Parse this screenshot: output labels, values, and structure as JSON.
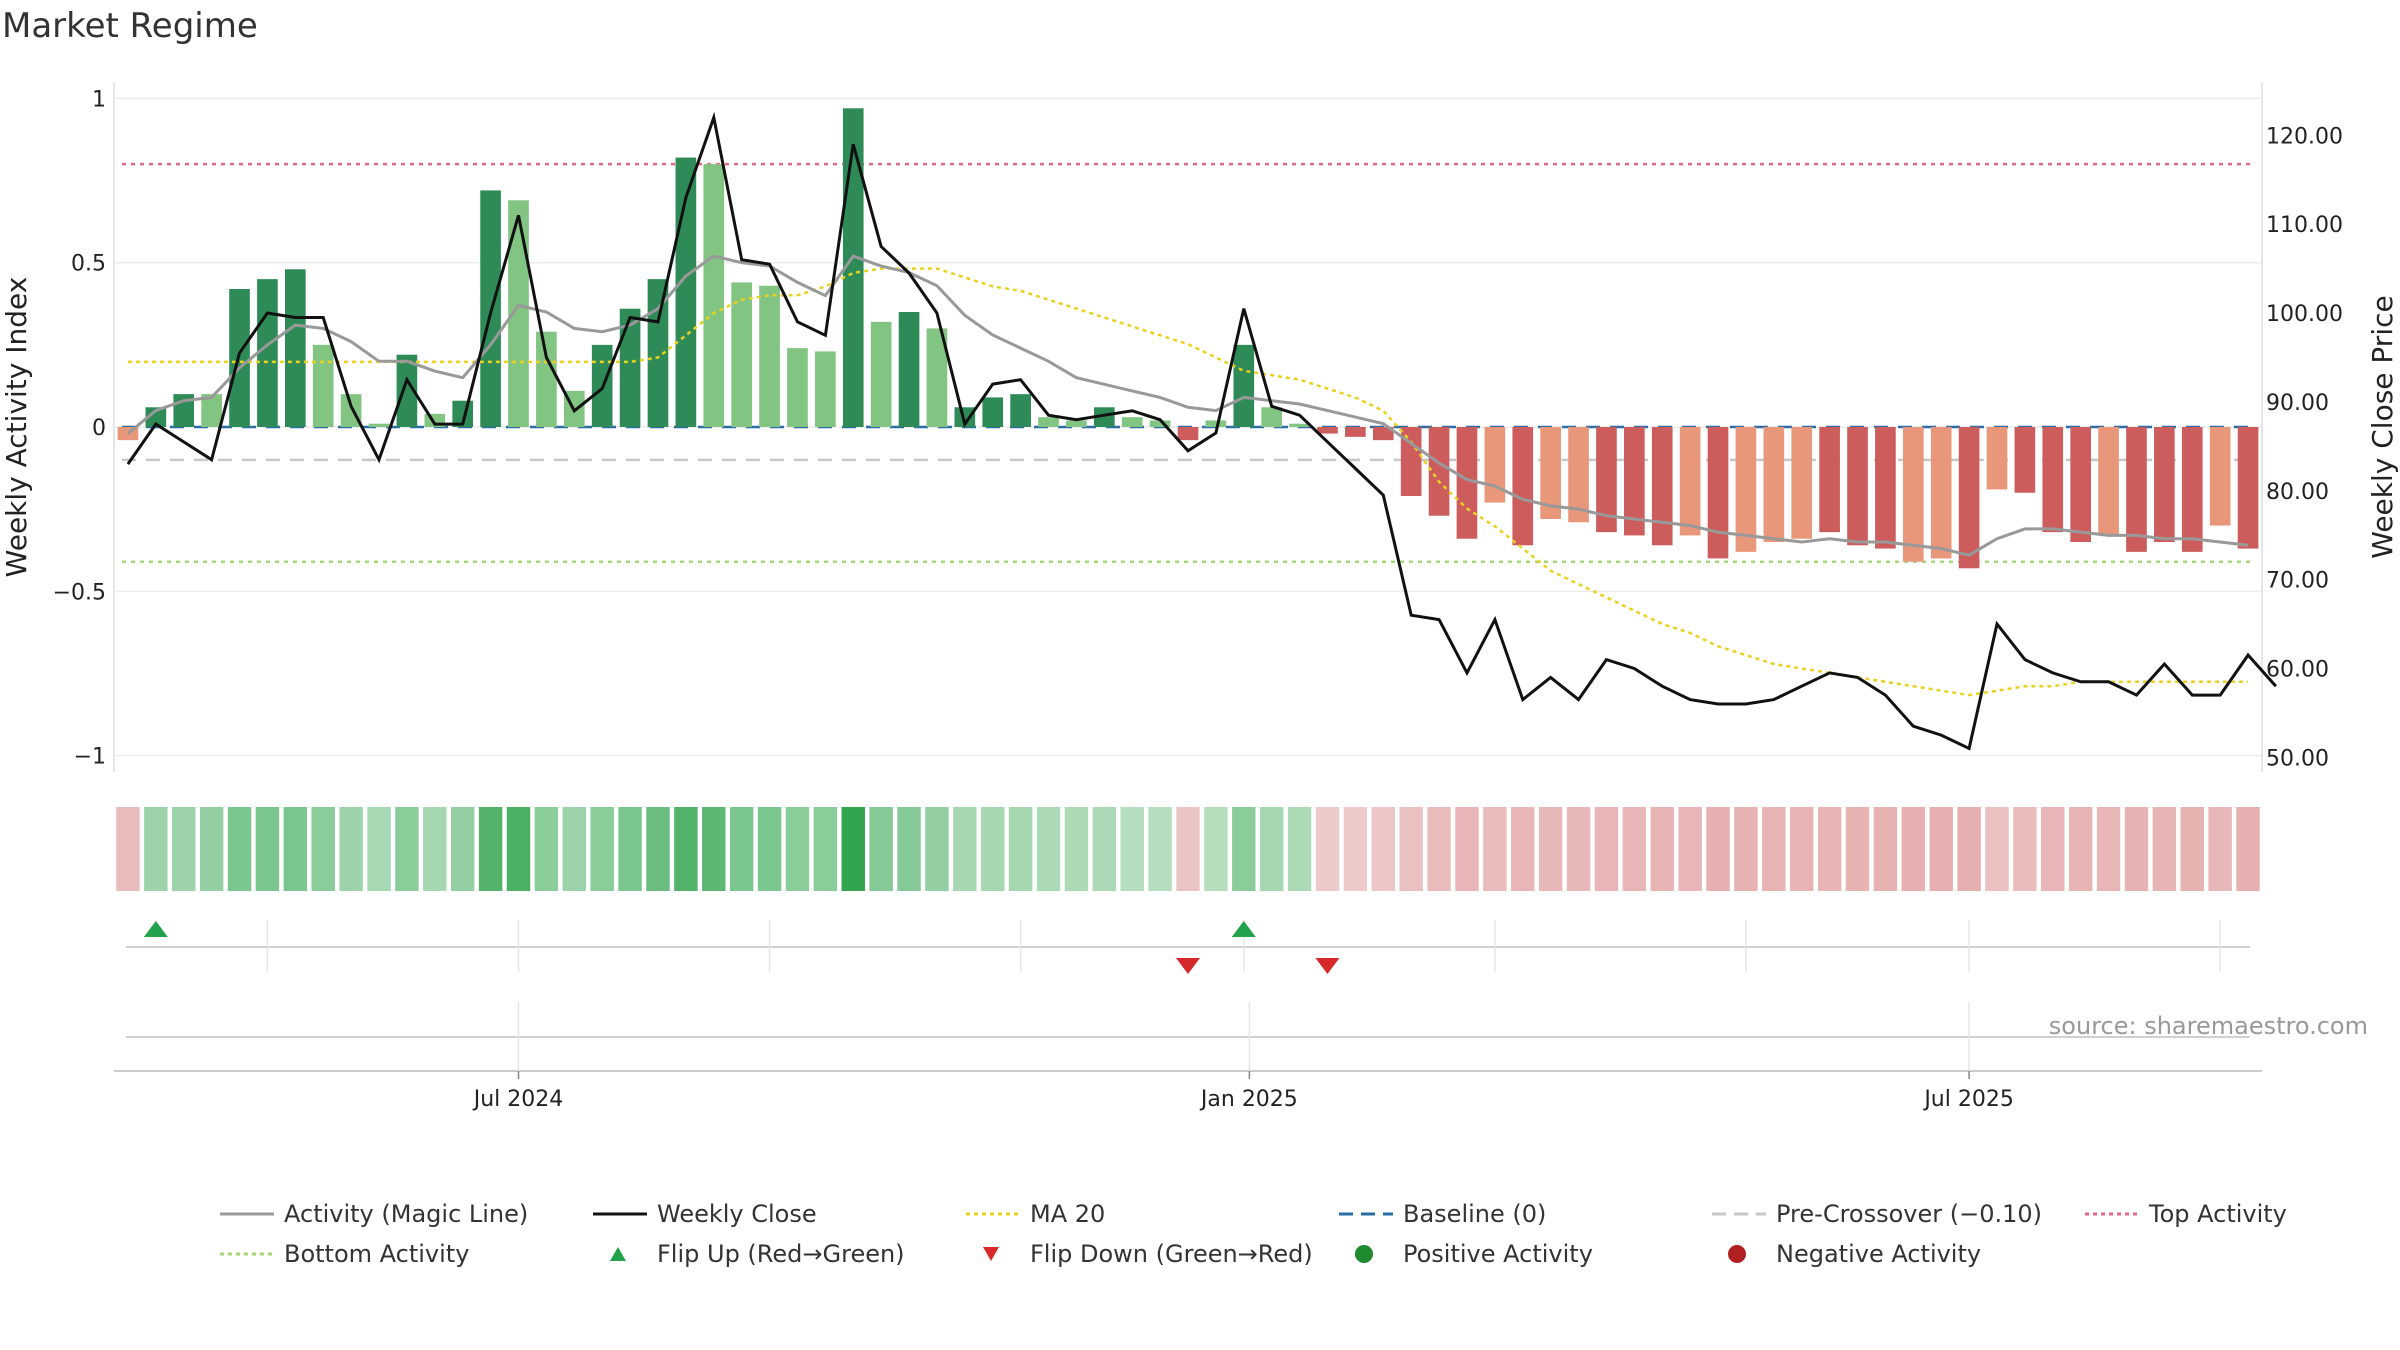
{
  "title": "Market Regime",
  "source": "source: sharemaestro.com",
  "legend": [
    {
      "label": "Activity (Magic Line)",
      "icon": "line",
      "color": "#999999",
      "dash": ""
    },
    {
      "label": "Weekly Close",
      "icon": "line",
      "color": "#111111",
      "dash": ""
    },
    {
      "label": "MA 20",
      "icon": "line",
      "color": "#e8d21d",
      "dash": "4,4"
    },
    {
      "label": "Baseline (0)",
      "icon": "line",
      "color": "#2b6ea6",
      "dash": "14,8"
    },
    {
      "label": "Pre-Crossover (−0.10)",
      "icon": "line",
      "color": "#c7c7c7",
      "dash": "14,8"
    },
    {
      "label": "Top Activity",
      "icon": "line",
      "color": "#e36a86",
      "dash": "4,4"
    },
    {
      "label": "Bottom Activity",
      "icon": "line",
      "color": "#a8d67a",
      "dash": "4,4"
    },
    {
      "label": "Flip Up (Red→Green)",
      "icon": "triangle-up",
      "color": "#22a24a",
      "dash": ""
    },
    {
      "label": "Flip Down (Green→Red)",
      "icon": "triangle-down",
      "color": "#d62a2a",
      "dash": ""
    },
    {
      "label": "Positive Activity",
      "icon": "dot",
      "color": "#1f8a2f",
      "dash": ""
    },
    {
      "label": "Negative Activity",
      "icon": "dot",
      "color": "#b02020",
      "dash": ""
    }
  ],
  "chart_data": {
    "type": "bar",
    "title": "Market Regime",
    "ylabel": "Weekly Activity Index",
    "y2label": "Weekly Close Price",
    "ylim": [
      -1.05,
      1.05
    ],
    "y2lim": [
      48.35,
      126.0
    ],
    "yticks": [
      {
        "value": 1,
        "label": "1"
      },
      {
        "value": 0.5,
        "label": "0.5"
      },
      {
        "value": 0,
        "label": "0"
      },
      {
        "value": -0.5,
        "label": "−0.5"
      },
      {
        "value": -1,
        "label": "−1"
      }
    ],
    "y2ticks": [
      {
        "value": 120,
        "label": "120.00"
      },
      {
        "value": 110,
        "label": "110.00"
      },
      {
        "value": 100,
        "label": "100.00"
      },
      {
        "value": 90,
        "label": "90.00"
      },
      {
        "value": 80,
        "label": "80.00"
      },
      {
        "value": 70,
        "label": "70.00"
      },
      {
        "value": 60,
        "label": "60.00"
      },
      {
        "value": 50,
        "label": "50.00"
      }
    ],
    "xticks": [
      {
        "index": 14,
        "label": "Jul 2024"
      },
      {
        "index": 40.2,
        "label": "Jan 2025"
      },
      {
        "index": 66,
        "label": "Jul 2025"
      }
    ],
    "grid": true,
    "legend_position": "bottom",
    "reference_lines": {
      "top_activity": 0.8,
      "bottom_activity": -0.41,
      "baseline": 0,
      "pre_crossover": -0.1
    },
    "activity_index": [
      -0.04,
      0.06,
      0.1,
      0.1,
      0.42,
      0.45,
      0.48,
      0.25,
      0.1,
      0.01,
      0.22,
      0.04,
      0.08,
      0.72,
      0.69,
      0.29,
      0.11,
      0.25,
      0.36,
      0.45,
      0.82,
      0.8,
      0.44,
      0.43,
      0.24,
      0.23,
      0.97,
      0.32,
      0.35,
      0.3,
      0.06,
      0.09,
      0.1,
      0.03,
      0.02,
      0.06,
      0.03,
      0.02,
      -0.04,
      0.02,
      0.25,
      0.06,
      0.01,
      -0.02,
      -0.03,
      -0.04,
      -0.21,
      -0.27,
      -0.34,
      -0.23,
      -0.36,
      -0.28,
      -0.29,
      -0.32,
      -0.33,
      -0.36,
      -0.33,
      -0.4,
      -0.38,
      -0.35,
      -0.34,
      -0.32,
      -0.36,
      -0.37,
      -0.41,
      -0.4,
      -0.43,
      -0.19,
      -0.2,
      -0.32,
      -0.35,
      -0.33,
      -0.38,
      -0.35,
      -0.38,
      -0.3,
      -0.37
    ],
    "bar_shade": [
      "neg-light",
      "pos-dark",
      "pos-dark",
      "pos-light",
      "pos-dark",
      "pos-dark",
      "pos-dark",
      "pos-light",
      "pos-light",
      "pos-light",
      "pos-dark",
      "pos-light",
      "pos-dark",
      "pos-dark",
      "pos-light",
      "pos-light",
      "pos-light",
      "pos-dark",
      "pos-dark",
      "pos-dark",
      "pos-dark",
      "pos-light",
      "pos-light",
      "pos-light",
      "pos-light",
      "pos-light",
      "pos-dark",
      "pos-light",
      "pos-dark",
      "pos-light",
      "pos-dark",
      "pos-dark",
      "pos-dark",
      "pos-light",
      "pos-light",
      "pos-dark",
      "pos-light",
      "pos-light",
      "neg-dark",
      "pos-light",
      "pos-dark",
      "pos-light",
      "pos-light",
      "neg-dark",
      "neg-dark",
      "neg-dark",
      "neg-dark",
      "neg-dark",
      "neg-dark",
      "neg-light",
      "neg-dark",
      "neg-light",
      "neg-light",
      "neg-dark",
      "neg-dark",
      "neg-dark",
      "neg-light",
      "neg-dark",
      "neg-light",
      "neg-light",
      "neg-light",
      "neg-dark",
      "neg-dark",
      "neg-dark",
      "neg-light",
      "neg-light",
      "neg-dark",
      "neg-light",
      "neg-dark",
      "neg-dark",
      "neg-dark",
      "neg-light",
      "neg-dark",
      "neg-dark",
      "neg-dark",
      "neg-light",
      "neg-dark"
    ],
    "magic_line": [
      -0.02,
      0.05,
      0.08,
      0.09,
      0.18,
      0.25,
      0.31,
      0.3,
      0.26,
      0.2,
      0.2,
      0.17,
      0.15,
      0.25,
      0.37,
      0.35,
      0.3,
      0.29,
      0.31,
      0.36,
      0.46,
      0.52,
      0.5,
      0.49,
      0.44,
      0.4,
      0.52,
      0.49,
      0.47,
      0.43,
      0.34,
      0.28,
      0.24,
      0.2,
      0.15,
      0.13,
      0.11,
      0.09,
      0.06,
      0.05,
      0.09,
      0.08,
      0.07,
      0.05,
      0.03,
      0.01,
      -0.05,
      -0.11,
      -0.16,
      -0.18,
      -0.22,
      -0.24,
      -0.25,
      -0.27,
      -0.28,
      -0.29,
      -0.3,
      -0.32,
      -0.33,
      -0.34,
      -0.35,
      -0.34,
      -0.35,
      -0.35,
      -0.36,
      -0.37,
      -0.39,
      -0.34,
      -0.31,
      -0.31,
      -0.32,
      -0.33,
      -0.33,
      -0.34,
      -0.34,
      -0.35,
      -0.36
    ],
    "weekly_close": [
      83,
      87.5,
      85.5,
      83.5,
      95.5,
      100,
      99.5,
      99.5,
      89.5,
      83.5,
      92.5,
      87.5,
      87.5,
      100,
      111,
      95,
      89,
      91.5,
      99.5,
      99,
      113,
      122,
      106,
      105.5,
      99,
      97.5,
      119,
      107.5,
      104.5,
      100,
      87.5,
      92,
      92.5,
      88.5,
      88,
      88.5,
      89,
      88,
      84.5,
      86.5,
      100.5,
      89.5,
      88.5,
      85.5,
      82.5,
      79.5,
      66,
      65.5,
      59.5,
      65.5,
      56.5,
      59,
      56.5,
      61,
      60,
      58,
      56.5,
      56,
      56,
      56.5,
      58,
      59.5,
      59,
      57,
      53.5,
      52.5,
      51,
      65,
      61,
      59.5,
      58.5,
      58.5,
      57,
      60.5,
      57,
      57,
      61.5,
      58
    ],
    "ma20": [
      94.5,
      94.5,
      94.5,
      94.5,
      94.5,
      94.5,
      94.5,
      94.5,
      94.5,
      94.5,
      94.5,
      94.5,
      94.5,
      94.5,
      94.5,
      94.5,
      94.5,
      94.5,
      94.5,
      95,
      97.5,
      100,
      101.5,
      102,
      102,
      103,
      104.5,
      105,
      105,
      105,
      104,
      103,
      102.5,
      101.5,
      100.5,
      99.5,
      98.5,
      97.5,
      96.5,
      95,
      93.5,
      93,
      92.5,
      91.5,
      90.5,
      89,
      85.5,
      81,
      78,
      76,
      73.5,
      71,
      69.5,
      68,
      66.5,
      65,
      64,
      62.5,
      61.5,
      60.5,
      60,
      59.5,
      59,
      58.5,
      58,
      57.5,
      57,
      57.5,
      58,
      58,
      58.5,
      58.5,
      58.5,
      58.5,
      58.5,
      58.5,
      58.5
    ],
    "strip_intensity": [
      0.35,
      0.35,
      0.35,
      0.4,
      0.55,
      0.55,
      0.55,
      0.45,
      0.35,
      0.28,
      0.45,
      0.3,
      0.4,
      0.8,
      0.85,
      0.45,
      0.35,
      0.45,
      0.55,
      0.65,
      0.8,
      0.75,
      0.55,
      0.55,
      0.45,
      0.45,
      1.0,
      0.5,
      0.5,
      0.4,
      0.3,
      0.3,
      0.3,
      0.25,
      0.25,
      0.25,
      0.2,
      0.2,
      0.25,
      0.2,
      0.45,
      0.3,
      0.25,
      0.2,
      0.2,
      0.22,
      0.3,
      0.35,
      0.4,
      0.35,
      0.4,
      0.38,
      0.38,
      0.4,
      0.4,
      0.42,
      0.4,
      0.45,
      0.43,
      0.42,
      0.42,
      0.41,
      0.44,
      0.44,
      0.46,
      0.46,
      0.48,
      0.3,
      0.32,
      0.4,
      0.42,
      0.4,
      0.44,
      0.42,
      0.44,
      0.38,
      0.45
    ],
    "flip_up_indices": [
      1,
      40
    ],
    "flip_down_indices": [
      38,
      43
    ],
    "event_ticks": [
      5,
      14,
      23,
      32,
      40,
      49,
      58,
      66,
      75
    ]
  }
}
